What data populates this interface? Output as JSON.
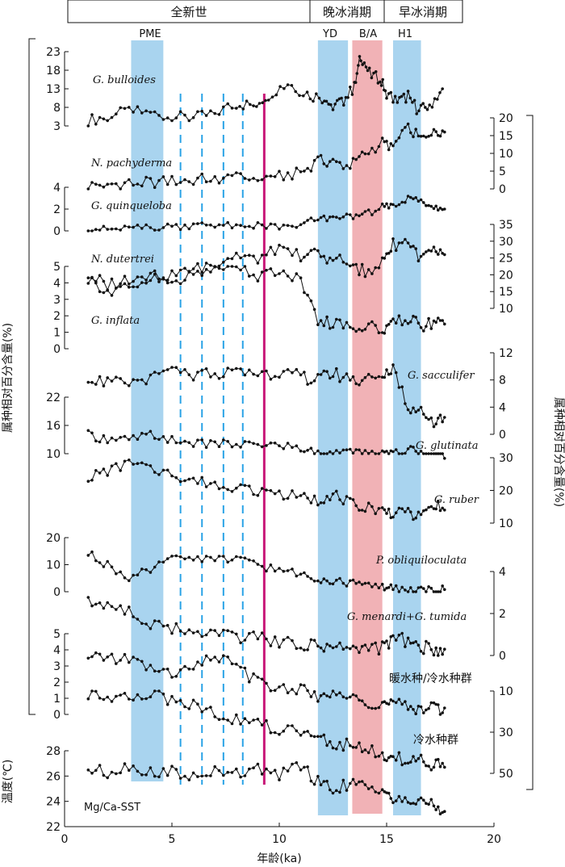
{
  "chart_data": {
    "type": "line",
    "xlabel": "年龄(ka)",
    "x_ticks": [
      0,
      5,
      10,
      15,
      20
    ],
    "xlim": [
      0,
      20
    ],
    "left_ylabel": "属种相对百分含量(%)",
    "right_ylabel": "属种相对百分含量(%)",
    "sst_ylabel": "温度(℃)",
    "periods": [
      {
        "label": "全新世",
        "start": 0,
        "end": 11.5
      },
      {
        "label": "晚冰消期",
        "start": 11.5,
        "end": 14.7
      },
      {
        "label": "早冰消期",
        "start": 14.7,
        "end": 18.5
      }
    ],
    "events": [
      {
        "label": "PME",
        "start": 3.1,
        "end": 4.6,
        "color": "#a9d4ef"
      },
      {
        "label": "YD",
        "start": 11.8,
        "end": 13.2,
        "color": "#a9d4ef"
      },
      {
        "label": "B/A",
        "start": 13.4,
        "end": 14.8,
        "color": "#f1b2b6"
      },
      {
        "label": "H1",
        "start": 15.3,
        "end": 16.6,
        "color": "#a9d4ef"
      }
    ],
    "dashed_lines_ka": [
      5.4,
      6.4,
      7.4,
      8.3
    ],
    "dashed_color": "#2aa3e6",
    "boundary_ka": 9.3,
    "boundary_color": "#c81878",
    "series": [
      {
        "name": "G. bulloides",
        "side": "left",
        "ticks": [
          3,
          8,
          13,
          18,
          23
        ],
        "x": [
          1.1,
          2,
          3,
          4,
          5,
          6,
          7,
          8,
          8.8,
          9.5,
          10.4,
          11.3,
          12,
          12.5,
          13,
          13.5,
          13.8,
          14.2,
          14.7,
          15,
          15.5,
          16,
          16.5,
          17,
          17.6
        ],
        "values": [
          4.5,
          5.5,
          7,
          6.5,
          5.5,
          5,
          6.5,
          9,
          8.5,
          11.5,
          14.5,
          11.5,
          10.5,
          8.5,
          10,
          13.5,
          22,
          17,
          15.5,
          12,
          9.5,
          11,
          7,
          8.5,
          13
        ]
      },
      {
        "name": "N. pachyderma",
        "side": "right",
        "ticks": [
          0,
          5,
          10,
          15,
          20
        ],
        "x": [
          1.1,
          2,
          3,
          4,
          5,
          6,
          7,
          8,
          9,
          10,
          11,
          11.8,
          12.5,
          13.3,
          14,
          14.8,
          15.3,
          16,
          16.6,
          17.2,
          17.7
        ],
        "values": [
          1,
          1.3,
          1.5,
          1.8,
          2.2,
          2.5,
          3,
          3,
          3,
          3.5,
          4.5,
          8,
          7.5,
          6.5,
          10,
          13,
          12,
          17,
          14,
          17,
          16
        ]
      },
      {
        "name": "G. quinqueloba",
        "side": "left",
        "ticks": [
          0,
          2,
          4
        ],
        "x": [
          1.1,
          2,
          3,
          4,
          5,
          6,
          7,
          8,
          9,
          10,
          11,
          11.8,
          12.5,
          13.3,
          14,
          14.8,
          15.3,
          16,
          16.6,
          17.2,
          17.7
        ],
        "values": [
          0.3,
          0.1,
          0.2,
          0.3,
          0.4,
          0.5,
          0.6,
          0.4,
          0.5,
          0.3,
          0.5,
          1.2,
          1.0,
          1.3,
          1.5,
          2.2,
          2.2,
          3,
          2.8,
          2.2,
          2.0
        ]
      },
      {
        "name": "N. dutertrei",
        "side": "right",
        "ticks": [
          10,
          15,
          20,
          25,
          30,
          35
        ],
        "x": [
          1.1,
          2,
          3,
          4,
          5,
          6,
          7,
          8,
          9,
          10,
          11,
          11.8,
          12.5,
          13.3,
          14,
          14.8,
          15.3,
          16,
          16.6,
          17.2,
          17.7
        ],
        "values": [
          20,
          17,
          19,
          20,
          20,
          21,
          24,
          26,
          25,
          27,
          26,
          26,
          25,
          23,
          21,
          24,
          29,
          30,
          25,
          27,
          26
        ]
      },
      {
        "name": "G. inflata",
        "side": "left",
        "ticks": [
          0,
          1,
          2,
          3,
          4,
          5
        ],
        "x": [
          1.1,
          2,
          3,
          4,
          5,
          6,
          7,
          8,
          9,
          10,
          11,
          11.8,
          12.5,
          13.3,
          14,
          14.8,
          15.3,
          16,
          16.6,
          17.2,
          17.7
        ],
        "values": [
          4.2,
          3.6,
          3.8,
          4.2,
          4.0,
          4.4,
          5,
          5.2,
          4.5,
          4.5,
          4.2,
          1.7,
          1.6,
          1.3,
          1.5,
          1.2,
          1.6,
          1.8,
          1.4,
          1.6,
          1.5
        ]
      },
      {
        "name": "G. sacculifer",
        "side": "right",
        "ticks": [
          0,
          4,
          8,
          12
        ],
        "x": [
          1.1,
          2,
          3,
          4,
          5,
          6,
          7,
          8,
          9,
          10,
          11,
          11.8,
          12.5,
          13.3,
          14,
          14.8,
          15.3,
          16,
          16.6,
          17.2,
          17.7
        ],
        "values": [
          8.5,
          7.5,
          7.5,
          8.5,
          9,
          8.5,
          9,
          9,
          9,
          9,
          8.5,
          8,
          9,
          8,
          8,
          8.5,
          10,
          4,
          3.5,
          2,
          2.5
        ]
      },
      {
        "name": "G. glutinata",
        "side": "left",
        "ticks": [
          10,
          16,
          22
        ],
        "x": [
          1.1,
          2,
          3,
          4,
          5,
          6,
          7,
          8,
          9,
          10,
          11,
          11.8,
          12.5,
          13.3,
          14,
          14.8,
          15.3,
          16,
          16.6,
          17.2,
          17.7
        ],
        "values": [
          14,
          13,
          13,
          14,
          13,
          12,
          12,
          12,
          12,
          12,
          11,
          10,
          10,
          10,
          10,
          10,
          10,
          11,
          10,
          9,
          9
        ]
      },
      {
        "name": "G. ruber",
        "side": "right",
        "ticks": [
          10,
          20,
          30
        ],
        "x": [
          1.1,
          2,
          3,
          4,
          5,
          6,
          7,
          8,
          9,
          10,
          11,
          11.8,
          12.5,
          13.3,
          14,
          14.8,
          15.3,
          16,
          16.6,
          17.2,
          17.7
        ],
        "values": [
          24,
          26,
          28,
          27,
          25,
          23,
          22,
          21,
          20,
          19,
          18,
          17,
          19,
          16,
          15,
          14,
          13,
          13,
          12,
          16,
          14
        ]
      },
      {
        "name": "P. obliquiloculata",
        "side": "left",
        "ticks": [
          0,
          10,
          20
        ],
        "x": [
          1.1,
          2,
          3,
          4,
          5,
          6,
          7,
          8,
          9,
          10,
          11,
          11.8,
          12.5,
          13.3,
          14,
          14.8,
          15.3,
          16,
          16.6,
          17.2,
          17.7
        ],
        "values": [
          14,
          10,
          5,
          8,
          12,
          13,
          12,
          12,
          10,
          8,
          7,
          5,
          4,
          3,
          3,
          2,
          1,
          0.5,
          0.3,
          0.4,
          0.8
        ]
      },
      {
        "name": "G. menardi+G. tumida",
        "side": "right",
        "ticks": [
          0,
          2,
          4
        ],
        "x": [
          1.1,
          2,
          3,
          4,
          5,
          6,
          7,
          8,
          9,
          10,
          11,
          11.8,
          12.5,
          13.3,
          14,
          14.8,
          15.3,
          16,
          16.6,
          17.2,
          17.7
        ],
        "values": [
          2.5,
          2.5,
          2.0,
          1.6,
          1.3,
          1.0,
          1.0,
          0.9,
          0.8,
          0.7,
          0.6,
          0.5,
          0.4,
          0.3,
          0.3,
          0.4,
          0.8,
          0.7,
          0.4,
          0.3,
          0.3
        ]
      },
      {
        "name": "暖水种/冷水种群",
        "side": "left",
        "ticks": [
          0,
          1,
          2,
          3,
          4,
          5
        ],
        "x": [
          1.1,
          2,
          3,
          4,
          5,
          6,
          7,
          8,
          9,
          10,
          11,
          11.8,
          12.5,
          13.3,
          14,
          14.8,
          15.3,
          16,
          16.6,
          17.2,
          17.7
        ],
        "values": [
          3.3,
          3.6,
          3.4,
          2.9,
          2.6,
          2.7,
          3.6,
          2.9,
          2.0,
          1.6,
          1.5,
          1.2,
          1.1,
          1.0,
          0.8,
          0.7,
          0.6,
          0.5,
          0.4,
          0.35,
          0.4
        ]
      },
      {
        "name": "冷水种群",
        "side": "right",
        "ticks": [
          10,
          30,
          50
        ],
        "x": [
          1.1,
          2,
          3,
          4,
          5,
          6,
          7,
          8,
          9,
          10,
          11,
          11.8,
          12.5,
          13.3,
          14,
          14.8,
          15.3,
          16,
          16.6,
          17.2,
          17.7
        ],
        "values": [
          12,
          12,
          12,
          12,
          14,
          16,
          20,
          24,
          26,
          28,
          30,
          33,
          35,
          36,
          38,
          40,
          42,
          44,
          44,
          46,
          47
        ]
      },
      {
        "name": "Mg/Ca-SST",
        "side": "left",
        "ticks": [
          22,
          24,
          26,
          28
        ],
        "x": [
          1.1,
          2,
          3,
          4,
          5,
          6,
          7,
          8,
          9,
          10,
          11,
          11.8,
          12.5,
          13.3,
          14,
          14.8,
          15.3,
          16,
          16.6,
          17.2,
          17.7
        ],
        "values": [
          26.5,
          26.3,
          26.8,
          26.3,
          26.5,
          25.8,
          26.4,
          26.2,
          26.5,
          26.0,
          26.8,
          25.5,
          25.0,
          25.4,
          25.2,
          25.0,
          24.0,
          23.8,
          24.2,
          23.6,
          23.2
        ]
      }
    ]
  }
}
